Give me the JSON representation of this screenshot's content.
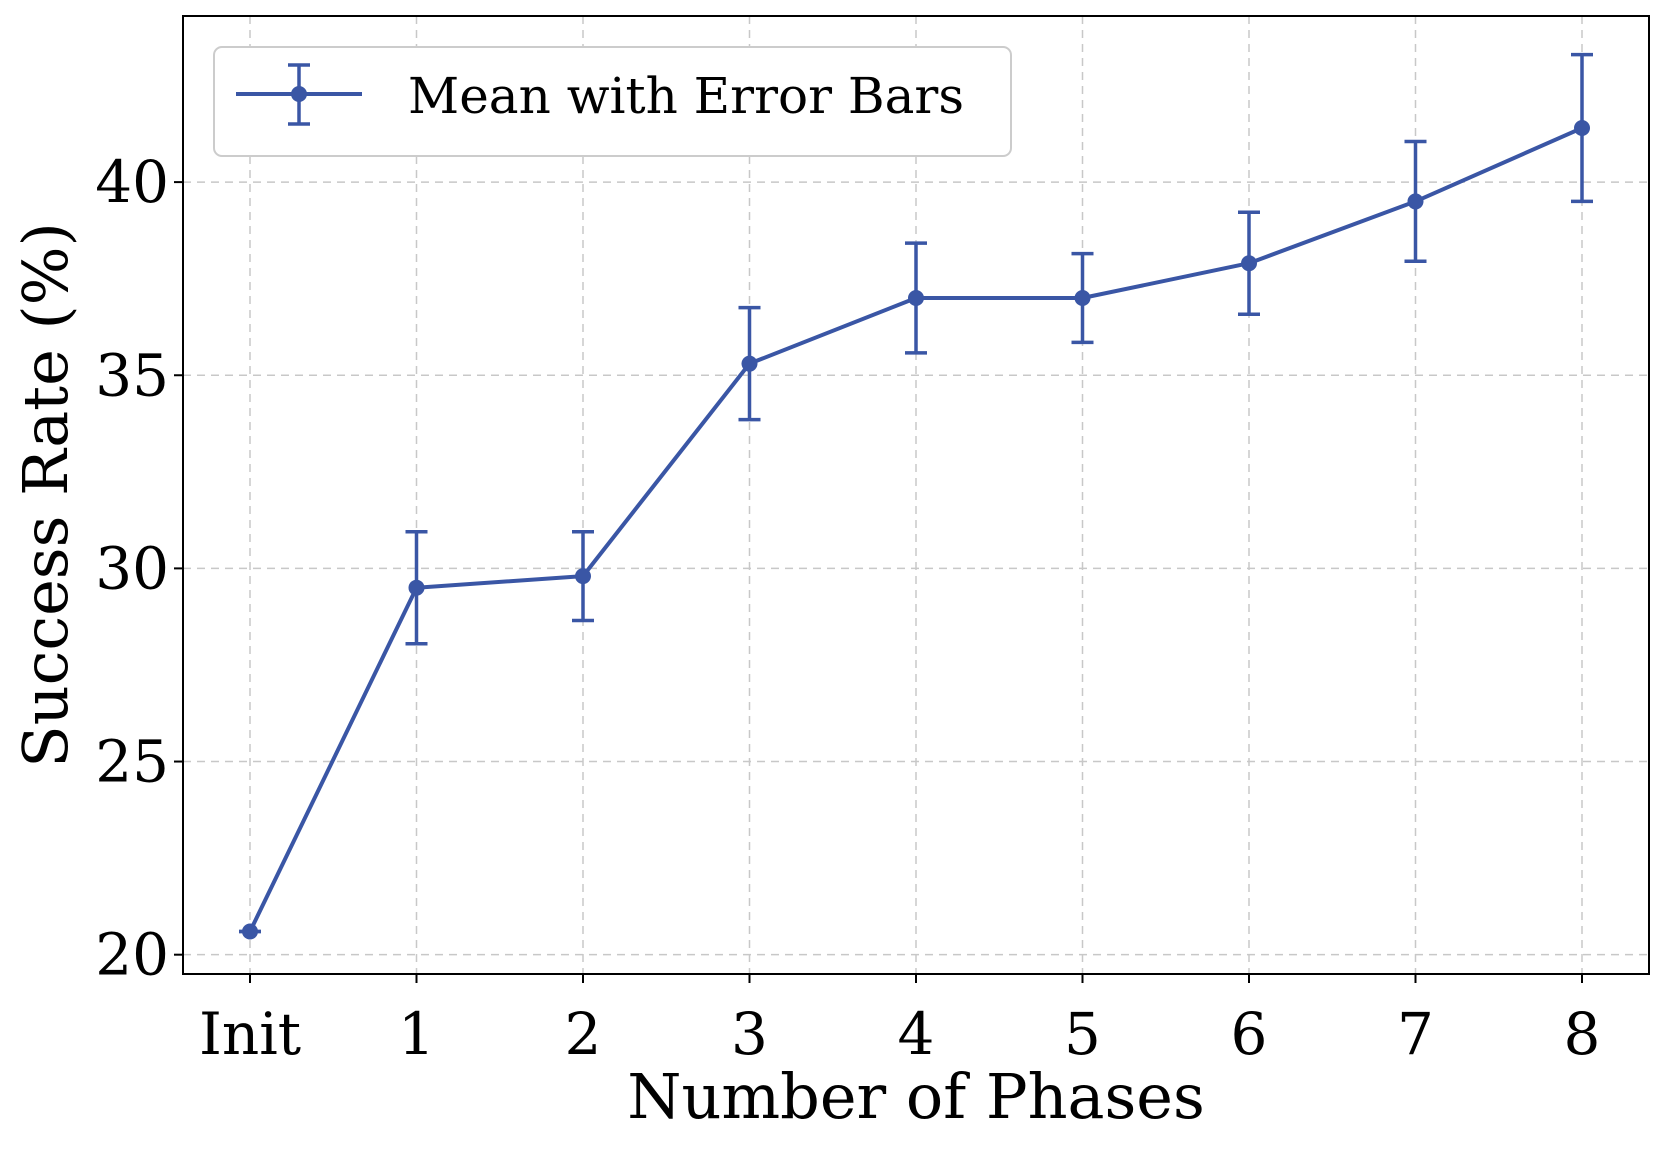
{
  "chart_data": {
    "type": "line",
    "title": "",
    "xlabel": "Number of Phases",
    "ylabel": "Success Rate (%)",
    "categories": [
      "Init",
      "1",
      "2",
      "3",
      "4",
      "5",
      "6",
      "7",
      "8"
    ],
    "ylim": [
      19.5,
      44.3
    ],
    "yticks": [
      20,
      25,
      30,
      35,
      40
    ],
    "grid": true,
    "legend_position": "top-left",
    "series": [
      {
        "name": "Mean with Error Bars",
        "color": "#3a56a5",
        "values": [
          20.6,
          29.5,
          29.8,
          35.3,
          37.0,
          37.0,
          37.9,
          39.5,
          41.4
        ],
        "error": [
          0.0,
          1.45,
          1.15,
          1.45,
          1.42,
          1.15,
          1.32,
          1.55,
          1.9
        ]
      }
    ]
  }
}
